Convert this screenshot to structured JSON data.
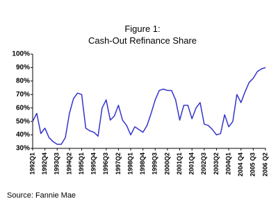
{
  "chart_data": {
    "type": "line",
    "title": "Figure 1:",
    "subtitle": "Cash-Out Refinance Share",
    "source": "Source: Fannie Mae",
    "categories": [
      "1992Q1",
      null,
      null,
      "1992Q4",
      null,
      null,
      "1993Q3",
      null,
      null,
      "1994Q2",
      null,
      null,
      "1995Q1",
      null,
      null,
      "1995Q4",
      null,
      null,
      "1996Q3",
      null,
      null,
      "1997Q2",
      null,
      null,
      "1998Q1",
      null,
      null,
      "1998Q4",
      null,
      null,
      "1999Q3",
      null,
      null,
      "2000Q2",
      null,
      null,
      "2001Q1",
      null,
      null,
      "2001Q4",
      null,
      null,
      "2002Q3",
      null,
      null,
      "2003Q2",
      null,
      null,
      "2004Q1",
      null,
      null,
      "2004 Q4",
      null,
      null,
      "2005 Q3",
      null,
      null,
      "2006 Q2"
    ],
    "values": [
      50,
      56,
      41,
      45,
      38,
      35,
      33,
      33,
      38,
      56,
      67,
      71,
      70,
      45,
      43,
      42,
      39,
      60,
      66,
      51,
      54,
      62,
      51,
      47,
      40,
      46,
      44,
      42,
      47,
      56,
      66,
      73,
      74,
      73,
      73,
      66,
      51,
      62,
      62,
      52,
      60,
      64,
      48,
      47,
      44,
      40,
      41,
      55,
      46,
      50,
      70,
      64,
      72,
      79,
      82,
      87,
      89,
      90
    ],
    "color": "#3333cc",
    "ylim": [
      30,
      100
    ],
    "yticks": [
      {
        "value": 30,
        "label": "30%"
      },
      {
        "value": 40,
        "label": "40%"
      },
      {
        "value": 50,
        "label": "50%"
      },
      {
        "value": 60,
        "label": "60%"
      },
      {
        "value": 70,
        "label": "70%"
      },
      {
        "value": 80,
        "label": "80%"
      },
      {
        "value": 90,
        "label": "90%"
      },
      {
        "value": 100,
        "label": "100%"
      }
    ],
    "grid": false
  }
}
